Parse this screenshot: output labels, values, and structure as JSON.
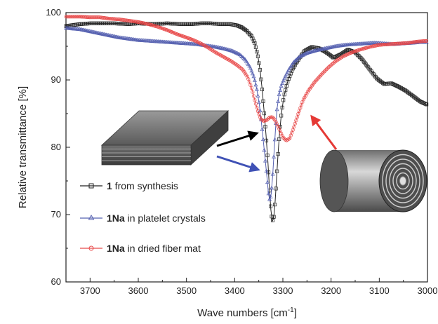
{
  "chart_data": {
    "type": "line",
    "ylabel": "Relative transmittance [%]",
    "xlabel_main": "Wave numbers [cm",
    "xlabel_sup": "-1",
    "xlabel_end": "]",
    "xlim": [
      3750,
      3000
    ],
    "ylim": [
      60,
      100
    ],
    "x_ticks": [
      3700,
      3600,
      3500,
      3400,
      3300,
      3200,
      3100,
      3000
    ],
    "y_ticks": [
      60,
      70,
      80,
      90,
      100
    ],
    "legend_position": "lower-left",
    "series": [
      {
        "legend_bold": "1",
        "legend_rest": " from synthesis",
        "color": "#222222",
        "marker": "square",
        "points": [
          [
            3750,
            98.0
          ],
          [
            3720,
            98.3
          ],
          [
            3700,
            98.4
          ],
          [
            3680,
            98.4
          ],
          [
            3650,
            98.4
          ],
          [
            3620,
            98.3
          ],
          [
            3600,
            98.4
          ],
          [
            3570,
            98.3
          ],
          [
            3540,
            98.4
          ],
          [
            3510,
            98.3
          ],
          [
            3490,
            98.3
          ],
          [
            3470,
            98.4
          ],
          [
            3450,
            98.4
          ],
          [
            3430,
            98.3
          ],
          [
            3410,
            98.3
          ],
          [
            3395,
            98.1
          ],
          [
            3385,
            97.8
          ],
          [
            3375,
            97.3
          ],
          [
            3365,
            96.5
          ],
          [
            3358,
            95.4
          ],
          [
            3352,
            93.6
          ],
          [
            3347,
            91.3
          ],
          [
            3343,
            88.6
          ],
          [
            3339,
            85.4
          ],
          [
            3335,
            81.8
          ],
          [
            3331,
            77.8
          ],
          [
            3328,
            74.0
          ],
          [
            3325,
            70.8
          ],
          [
            3322,
            69.0
          ],
          [
            3319,
            69.5
          ],
          [
            3316,
            72.0
          ],
          [
            3313,
            75.5
          ],
          [
            3310,
            79.0
          ],
          [
            3307,
            82.0
          ],
          [
            3303,
            85.0
          ],
          [
            3298,
            87.5
          ],
          [
            3290,
            89.8
          ],
          [
            3280,
            91.6
          ],
          [
            3268,
            93.0
          ],
          [
            3255,
            94.3
          ],
          [
            3240,
            94.9
          ],
          [
            3225,
            94.7
          ],
          [
            3210,
            94.1
          ],
          [
            3195,
            93.3
          ],
          [
            3180,
            93.8
          ],
          [
            3165,
            94.5
          ],
          [
            3150,
            94.1
          ],
          [
            3135,
            93.0
          ],
          [
            3120,
            91.6
          ],
          [
            3105,
            90.2
          ],
          [
            3090,
            89.4
          ],
          [
            3075,
            89.5
          ],
          [
            3060,
            89.0
          ],
          [
            3045,
            88.4
          ],
          [
            3030,
            87.6
          ],
          [
            3015,
            86.8
          ],
          [
            3000,
            86.3
          ]
        ]
      },
      {
        "legend_bold": "1Na",
        "legend_rest": " in platelet crystals",
        "color": "#5560b0",
        "marker": "triangle",
        "points": [
          [
            3750,
            97.7
          ],
          [
            3720,
            97.5
          ],
          [
            3700,
            97.2
          ],
          [
            3680,
            96.9
          ],
          [
            3660,
            96.6
          ],
          [
            3640,
            96.3
          ],
          [
            3620,
            96.1
          ],
          [
            3600,
            95.9
          ],
          [
            3580,
            95.8
          ],
          [
            3560,
            95.7
          ],
          [
            3540,
            95.6
          ],
          [
            3520,
            95.5
          ],
          [
            3500,
            95.4
          ],
          [
            3480,
            95.3
          ],
          [
            3460,
            95.1
          ],
          [
            3440,
            94.9
          ],
          [
            3420,
            94.6
          ],
          [
            3405,
            94.3
          ],
          [
            3390,
            93.8
          ],
          [
            3378,
            93.0
          ],
          [
            3368,
            91.9
          ],
          [
            3360,
            90.4
          ],
          [
            3354,
            88.6
          ],
          [
            3349,
            86.4
          ],
          [
            3345,
            84.0
          ],
          [
            3341,
            81.3
          ],
          [
            3337,
            78.4
          ],
          [
            3333,
            75.6
          ],
          [
            3330,
            73.2
          ],
          [
            3327,
            72.0
          ],
          [
            3324,
            73.2
          ],
          [
            3321,
            76.0
          ],
          [
            3318,
            79.5
          ],
          [
            3315,
            83.0
          ],
          [
            3312,
            85.8
          ],
          [
            3308,
            87.8
          ],
          [
            3303,
            89.2
          ],
          [
            3296,
            90.4
          ],
          [
            3288,
            91.5
          ],
          [
            3278,
            92.6
          ],
          [
            3266,
            93.4
          ],
          [
            3250,
            94.0
          ],
          [
            3230,
            94.4
          ],
          [
            3210,
            94.7
          ],
          [
            3190,
            95.0
          ],
          [
            3170,
            95.2
          ],
          [
            3150,
            95.3
          ],
          [
            3130,
            95.4
          ],
          [
            3110,
            95.5
          ],
          [
            3090,
            95.4
          ],
          [
            3070,
            95.3
          ],
          [
            3050,
            95.4
          ],
          [
            3030,
            95.5
          ],
          [
            3015,
            95.6
          ],
          [
            3000,
            95.6
          ]
        ]
      },
      {
        "legend_bold": "1Na",
        "legend_rest": " in dried fiber mat",
        "color": "#e84a4a",
        "marker": "circle",
        "points": [
          [
            3750,
            99.4
          ],
          [
            3720,
            99.4
          ],
          [
            3700,
            99.3
          ],
          [
            3680,
            99.3
          ],
          [
            3660,
            99.1
          ],
          [
            3640,
            99.0
          ],
          [
            3620,
            98.8
          ],
          [
            3600,
            98.6
          ],
          [
            3580,
            98.3
          ],
          [
            3560,
            97.9
          ],
          [
            3540,
            97.4
          ],
          [
            3520,
            96.8
          ],
          [
            3500,
            96.3
          ],
          [
            3485,
            95.9
          ],
          [
            3470,
            95.4
          ],
          [
            3455,
            94.8
          ],
          [
            3440,
            94.1
          ],
          [
            3425,
            93.5
          ],
          [
            3410,
            92.9
          ],
          [
            3395,
            92.2
          ],
          [
            3383,
            91.5
          ],
          [
            3373,
            90.4
          ],
          [
            3365,
            88.8
          ],
          [
            3358,
            86.9
          ],
          [
            3352,
            85.4
          ],
          [
            3346,
            84.2
          ],
          [
            3340,
            83.9
          ],
          [
            3334,
            84.0
          ],
          [
            3328,
            84.4
          ],
          [
            3322,
            84.5
          ],
          [
            3316,
            84.0
          ],
          [
            3308,
            82.8
          ],
          [
            3300,
            81.5
          ],
          [
            3293,
            81.0
          ],
          [
            3286,
            81.3
          ],
          [
            3278,
            82.8
          ],
          [
            3268,
            85.0
          ],
          [
            3258,
            87.0
          ],
          [
            3248,
            88.3
          ],
          [
            3235,
            89.6
          ],
          [
            3220,
            90.8
          ],
          [
            3205,
            91.9
          ],
          [
            3190,
            92.8
          ],
          [
            3175,
            93.5
          ],
          [
            3160,
            94.0
          ],
          [
            3140,
            94.5
          ],
          [
            3120,
            94.9
          ],
          [
            3100,
            95.2
          ],
          [
            3080,
            95.3
          ],
          [
            3060,
            95.4
          ],
          [
            3040,
            95.5
          ],
          [
            3020,
            95.7
          ],
          [
            3000,
            95.8
          ]
        ]
      }
    ]
  }
}
